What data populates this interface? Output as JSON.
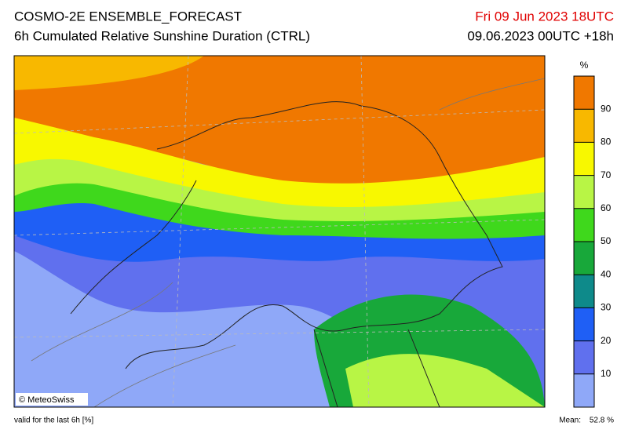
{
  "header": {
    "title": "COSMO-2E ENSEMBLE_FORECAST",
    "subtitle": "6h Cumulated Relative Sunshine Duration (CTRL)",
    "valid_date": "Fri 09 Jun 2023 18UTC",
    "run": "09.06.2023 00UTC +18h"
  },
  "colorbar": {
    "unit": "%",
    "range": [
      0,
      100
    ],
    "ticks": [
      10,
      20,
      30,
      40,
      50,
      60,
      70,
      80,
      90
    ],
    "colors": [
      "#8fa8f8",
      "#6070ee",
      "#1f5ff5",
      "#0e8a8a",
      "#18a83a",
      "#3fd81c",
      "#b8f545",
      "#f8f800",
      "#f8b800",
      "#f07800"
    ]
  },
  "copyright": "© MeteoSwiss",
  "footer": {
    "valid": "valid for the last 6h [%]",
    "mean_label": "Mean:",
    "mean": "52.8 %"
  }
}
